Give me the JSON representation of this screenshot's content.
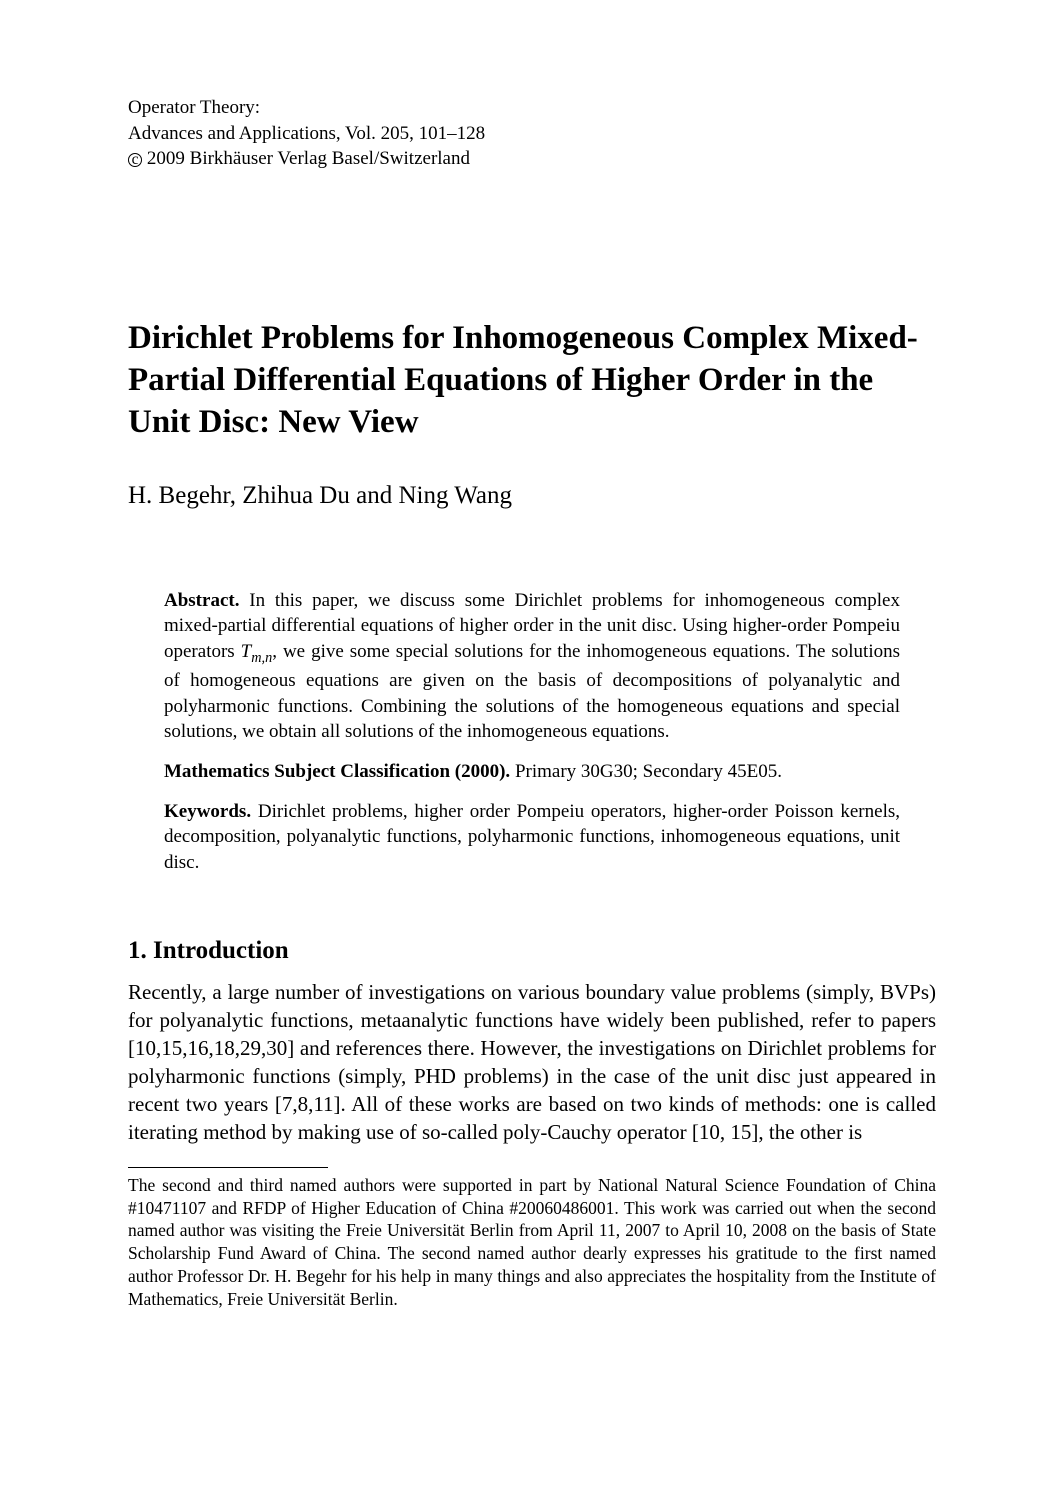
{
  "header": {
    "line1": "Operator Theory:",
    "line2": "Advances and Applications, Vol. 205,  101–128",
    "copyright_c": "c",
    "line3_rest": " 2009 Birkhäuser Verlag Basel/Switzerland"
  },
  "title": "Dirichlet Problems for Inhomogeneous Complex Mixed-Partial Differential Equations of Higher Order in the Unit Disc: New View",
  "authors": "H. Begehr, Zhihua Du and Ning Wang",
  "abstract": {
    "label": "Abstract.",
    "text_pre": " In this paper, we discuss some Dirichlet problems for inhomogeneous complex mixed-partial differential equations of higher order in the unit disc. Using higher-order Pompeiu operators ",
    "op_T": "T",
    "op_sub": "m,n",
    "text_post": ", we give some special solutions for the inhomogeneous equations. The solutions of homogeneous equations are given on the basis of decompositions of polyanalytic and polyharmonic functions. Combining the solutions of the homogeneous equations and special solutions, we obtain all solutions of the inhomogeneous equations."
  },
  "msc": {
    "label": "Mathematics Subject Classification (2000).",
    "text": " Primary 30G30; Secondary 45E05."
  },
  "keywords": {
    "label": "Keywords.",
    "text": " Dirichlet problems, higher order Pompeiu operators, higher-order Poisson kernels, decomposition, polyanalytic functions, polyharmonic functions, inhomogeneous equations, unit disc."
  },
  "section": {
    "heading": "1. Introduction",
    "body": "Recently, a large number of investigations on various boundary value problems (simply, BVPs) for polyanalytic functions, metaanalytic functions have widely been published, refer to papers [10,15,16,18,29,30] and references there. However, the investigations on Dirichlet problems for polyharmonic functions (simply, PHD problems) in the case of the unit disc just appeared in recent two years [7,8,11]. All of these works are based on two kinds of methods: one is called iterating method by making use of so-called poly-Cauchy operator [10, 15], the other is"
  },
  "footnote": "The second and third named authors were supported in part by National Natural Science Foundation of China #10471107 and RFDP of Higher Education of China #20060486001. This work was carried out when the second named author was visiting the Freie Universität Berlin from April 11, 2007 to April 10, 2008 on the basis of State Scholarship Fund Award of China. The second named author dearly expresses his gratitude to the first named author Professor Dr. H. Begehr for his help in many things and also appreciates the hospitality from the Institute of Mathematics, Freie Universität Berlin."
}
